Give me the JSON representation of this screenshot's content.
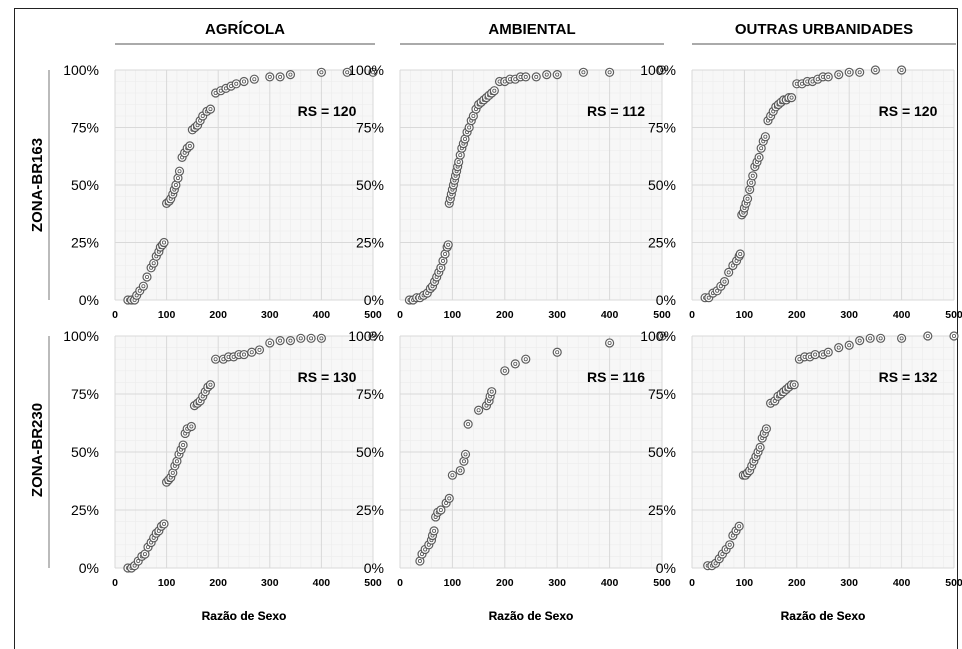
{
  "figure": {
    "column_titles": [
      "AGRÍCOLA",
      "AMBIENTAL",
      "OUTRAS URBANIDADES"
    ],
    "row_titles": [
      "ZONA-BR163",
      "ZONA-BR230"
    ],
    "x_axis_label": "Razão de Sexo",
    "y_tick_labels": [
      "0%",
      "25%",
      "50%",
      "75%",
      "100%"
    ],
    "x_tick_labels": [
      "0",
      "100",
      "200",
      "300",
      "400",
      "500"
    ],
    "colors": {
      "marker_outline": "#555555",
      "marker_fill_dense": "#555555",
      "grid": "#d9d9d9",
      "plot_bg": "#f7f7f7"
    }
  },
  "chart_data": [
    {
      "type": "scatter",
      "row": "ZONA-BR163",
      "column": "AGRÍCOLA",
      "annotation": "RS = 120",
      "xlim": [
        0,
        500
      ],
      "ylim": [
        0,
        100
      ],
      "y_unit": "%",
      "x": [
        25,
        32,
        38,
        42,
        48,
        55,
        62,
        70,
        75,
        80,
        85,
        88,
        92,
        95,
        100,
        105,
        108,
        112,
        115,
        118,
        122,
        125,
        130,
        135,
        140,
        145,
        150,
        155,
        160,
        165,
        170,
        178,
        185,
        195,
        205,
        215,
        225,
        235,
        250,
        270,
        300,
        320,
        340,
        400,
        450,
        500
      ],
      "y": [
        0,
        0,
        0,
        2,
        4,
        6,
        10,
        14,
        16,
        19,
        21,
        23,
        24,
        25,
        42,
        43,
        44,
        46,
        48,
        50,
        53,
        56,
        62,
        64,
        66,
        67,
        74,
        75,
        76,
        78,
        80,
        82,
        83,
        90,
        91,
        92,
        93,
        94,
        95,
        96,
        97,
        97,
        98,
        99,
        99,
        99
      ]
    },
    {
      "type": "scatter",
      "row": "ZONA-BR163",
      "column": "AMBIENTAL",
      "annotation": "RS = 112",
      "xlim": [
        0,
        500
      ],
      "ylim": [
        0,
        100
      ],
      "y_unit": "%",
      "x": [
        18,
        25,
        32,
        38,
        45,
        52,
        58,
        62,
        66,
        70,
        74,
        78,
        82,
        86,
        90,
        92,
        94,
        96,
        98,
        100,
        102,
        104,
        106,
        108,
        110,
        112,
        115,
        118,
        121,
        124,
        128,
        132,
        136,
        140,
        145,
        150,
        155,
        160,
        165,
        170,
        175,
        180,
        190,
        200,
        210,
        220,
        230,
        240,
        260,
        280,
        300,
        350,
        400,
        500
      ],
      "y": [
        0,
        0,
        1,
        1,
        2,
        3,
        5,
        6,
        8,
        10,
        12,
        14,
        17,
        20,
        23,
        24,
        42,
        44,
        46,
        48,
        50,
        52,
        54,
        56,
        58,
        60,
        63,
        66,
        68,
        70,
        73,
        75,
        78,
        80,
        83,
        85,
        86,
        87,
        88,
        89,
        90,
        91,
        95,
        95,
        96,
        96,
        97,
        97,
        97,
        98,
        98,
        99,
        99,
        100
      ]
    },
    {
      "type": "scatter",
      "row": "ZONA-BR163",
      "column": "OUTRAS URBANIDADES",
      "annotation": "RS = 120",
      "xlim": [
        0,
        500
      ],
      "ylim": [
        0,
        100
      ],
      "y_unit": "%",
      "x": [
        25,
        32,
        40,
        48,
        55,
        62,
        70,
        78,
        85,
        90,
        92,
        95,
        98,
        100,
        103,
        106,
        110,
        113,
        116,
        120,
        124,
        128,
        132,
        136,
        140,
        145,
        150,
        155,
        160,
        165,
        170,
        175,
        180,
        185,
        190,
        200,
        210,
        220,
        230,
        240,
        250,
        260,
        280,
        300,
        320,
        350,
        400
      ],
      "y": [
        1,
        1,
        3,
        4,
        6,
        8,
        12,
        15,
        17,
        19,
        20,
        37,
        38,
        40,
        42,
        44,
        48,
        51,
        54,
        58,
        60,
        62,
        66,
        69,
        71,
        78,
        80,
        82,
        84,
        85,
        86,
        87,
        87,
        88,
        88,
        94,
        94,
        95,
        95,
        96,
        97,
        97,
        98,
        99,
        99,
        100,
        100
      ]
    },
    {
      "type": "scatter",
      "row": "ZONA-BR230",
      "column": "AGRÍCOLA",
      "annotation": "RS = 130",
      "xlim": [
        0,
        500
      ],
      "ylim": [
        0,
        100
      ],
      "y_unit": "%",
      "x": [
        25,
        32,
        38,
        45,
        52,
        58,
        64,
        70,
        75,
        80,
        85,
        90,
        95,
        100,
        104,
        108,
        112,
        116,
        120,
        124,
        128,
        132,
        136,
        140,
        148,
        154,
        160,
        165,
        170,
        175,
        180,
        185,
        195,
        210,
        220,
        230,
        240,
        250,
        265,
        280,
        300,
        320,
        340,
        360,
        380,
        400,
        500
      ],
      "y": [
        0,
        0,
        1,
        3,
        5,
        6,
        9,
        11,
        13,
        15,
        16,
        18,
        19,
        37,
        38,
        39,
        41,
        44,
        46,
        49,
        51,
        53,
        58,
        60,
        61,
        70,
        71,
        72,
        74,
        76,
        78,
        79,
        90,
        90,
        91,
        91,
        92,
        92,
        93,
        94,
        97,
        98,
        98,
        99,
        99,
        99,
        100
      ]
    },
    {
      "type": "scatter",
      "row": "ZONA-BR230",
      "column": "AMBIENTAL",
      "annotation": "RS = 116",
      "xlim": [
        0,
        500
      ],
      "ylim": [
        0,
        100
      ],
      "y_unit": "%",
      "x": [
        38,
        42,
        48,
        55,
        60,
        62,
        65,
        68,
        72,
        78,
        88,
        94,
        100,
        115,
        122,
        125,
        130,
        150,
        165,
        170,
        172,
        175,
        200,
        220,
        240,
        300,
        400,
        500
      ],
      "y": [
        3,
        6,
        8,
        10,
        12,
        14,
        16,
        22,
        24,
        25,
        28,
        30,
        40,
        42,
        46,
        49,
        62,
        68,
        70,
        72,
        74,
        76,
        85,
        88,
        90,
        93,
        97,
        100
      ]
    },
    {
      "type": "scatter",
      "row": "ZONA-BR230",
      "column": "OUTRAS URBANIDADES",
      "annotation": "RS = 132",
      "xlim": [
        0,
        500
      ],
      "ylim": [
        0,
        100
      ],
      "y_unit": "%",
      "x": [
        30,
        38,
        45,
        52,
        58,
        65,
        72,
        78,
        84,
        90,
        98,
        102,
        106,
        110,
        114,
        118,
        122,
        126,
        130,
        134,
        138,
        142,
        150,
        158,
        164,
        170,
        175,
        180,
        185,
        190,
        195,
        205,
        215,
        225,
        235,
        250,
        260,
        280,
        300,
        320,
        340,
        360,
        400,
        450,
        500
      ],
      "y": [
        1,
        1,
        2,
        4,
        6,
        8,
        10,
        14,
        16,
        18,
        40,
        40,
        41,
        42,
        44,
        46,
        48,
        50,
        52,
        56,
        58,
        60,
        71,
        72,
        74,
        75,
        76,
        77,
        78,
        79,
        79,
        90,
        91,
        91,
        92,
        92,
        93,
        95,
        96,
        98,
        99,
        99,
        99,
        100,
        100
      ]
    }
  ]
}
